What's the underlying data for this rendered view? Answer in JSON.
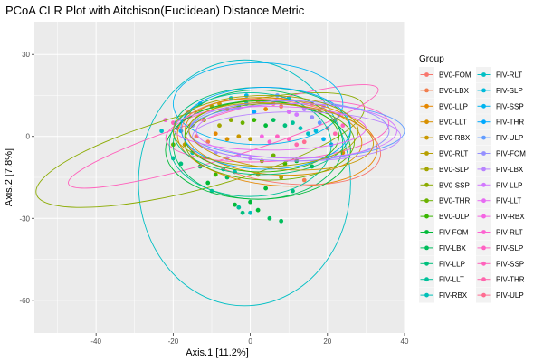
{
  "chart_data": {
    "type": "scatter",
    "title": "PCoA CLR Plot with Aitchison(Euclidean) Distance Metric",
    "xlabel": "Axis.1   [11.2%]",
    "ylabel": "Axis.2   [7.8%]",
    "xlim": [
      -56,
      40
    ],
    "ylim": [
      -72,
      42
    ],
    "x_ticks": [
      -40,
      -20,
      0,
      20,
      40
    ],
    "y_ticks": [
      -60,
      -30,
      0,
      30
    ],
    "x_tick_labels": [
      "-40",
      "-20",
      "0",
      "20",
      "40"
    ],
    "y_tick_labels": [
      "-60",
      "-30",
      "0",
      "30"
    ],
    "grid": true,
    "legend_position": "right",
    "legend_title": "Group",
    "groups": [
      {
        "name": "BV0-FOM",
        "color": "#F8766D"
      },
      {
        "name": "BV0-LBX",
        "color": "#F17E4F"
      },
      {
        "name": "BV0-LLP",
        "color": "#E58700"
      },
      {
        "name": "BV0-LLT",
        "color": "#D89000"
      },
      {
        "name": "BV0-RBX",
        "color": "#C99800"
      },
      {
        "name": "BV0-RLT",
        "color": "#B79F00"
      },
      {
        "name": "BV0-SLP",
        "color": "#A3A500"
      },
      {
        "name": "BV0-SSP",
        "color": "#8BAB00"
      },
      {
        "name": "BV0-THR",
        "color": "#6BB100"
      },
      {
        "name": "BV0-ULP",
        "color": "#39B600"
      },
      {
        "name": "FIV-FOM",
        "color": "#00BA38"
      },
      {
        "name": "FIV-LBX",
        "color": "#00BD5C"
      },
      {
        "name": "FIV-LLP",
        "color": "#00BF7D"
      },
      {
        "name": "FIV-LLT",
        "color": "#00C19A"
      },
      {
        "name": "FIV-RBX",
        "color": "#00C0B8"
      },
      {
        "name": "FIV-RLT",
        "color": "#00BFC4"
      },
      {
        "name": "FIV-SLP",
        "color": "#00BBDB"
      },
      {
        "name": "FIV-SSP",
        "color": "#00B4EF"
      },
      {
        "name": "FIV-THR",
        "color": "#00A9FF"
      },
      {
        "name": "FIV-ULP",
        "color": "#619CFF"
      },
      {
        "name": "PIV-FOM",
        "color": "#9590FF"
      },
      {
        "name": "PIV-LBX",
        "color": "#B983FF"
      },
      {
        "name": "PIV-LLP",
        "color": "#D277FF"
      },
      {
        "name": "PIV-LLT",
        "color": "#E76BF3"
      },
      {
        "name": "PIV-RBX",
        "color": "#F564E3"
      },
      {
        "name": "PIV-RLT",
        "color": "#FD61D1"
      },
      {
        "name": "PIV-SLP",
        "color": "#FF61C3"
      },
      {
        "name": "PIV-SSP",
        "color": "#FF62BC"
      },
      {
        "name": "PIV-THR",
        "color": "#FF65AC"
      },
      {
        "name": "PIV-ULP",
        "color": "#FF6C91"
      }
    ],
    "ellipses": [
      {
        "group": "FIV-RLT",
        "cx": -1.5,
        "cy": -17,
        "rx": 27.5,
        "ry": 45,
        "angle": 0
      },
      {
        "group": "BV0-SSP",
        "cx": -13,
        "cy": -5,
        "rx": 44,
        "ry": 14,
        "angle": 15
      },
      {
        "group": "PIV-SSP",
        "cx": -7,
        "cy": 0,
        "rx": 42,
        "ry": 8,
        "angle": 17
      },
      {
        "group": "PIV-SLP",
        "cx": 7,
        "cy": 2,
        "rx": 29,
        "ry": 11,
        "angle": 4
      },
      {
        "group": "FIV-LBX",
        "cx": 2,
        "cy": -3,
        "rx": 22,
        "ry": 20,
        "angle": 0
      },
      {
        "group": "FIV-SSP",
        "cx": 2,
        "cy": 12,
        "rx": 22,
        "ry": 15,
        "angle": 0
      },
      {
        "group": "BV0-LLP",
        "cx": 7,
        "cy": -2,
        "rx": 26,
        "ry": 16,
        "angle": -5
      },
      {
        "group": "BV0-FOM",
        "cx": 8,
        "cy": -2,
        "rx": 26,
        "ry": 15,
        "angle": -8
      },
      {
        "group": "BV0-LLT",
        "cx": 6,
        "cy": 0,
        "rx": 23,
        "ry": 14,
        "angle": -5
      },
      {
        "group": "FIV-FOM",
        "cx": 2,
        "cy": -5,
        "rx": 24,
        "ry": 18,
        "angle": 0
      },
      {
        "group": "FIV-LLP",
        "cx": 3,
        "cy": 2,
        "rx": 23,
        "ry": 16,
        "angle": 0
      },
      {
        "group": "FIV-LLT",
        "cx": 0,
        "cy": -3,
        "rx": 21,
        "ry": 19,
        "angle": 0
      },
      {
        "group": "BV0-THR",
        "cx": 5,
        "cy": -2,
        "rx": 22,
        "ry": 14,
        "angle": 0
      },
      {
        "group": "BV0-ULP",
        "cx": 3,
        "cy": 0,
        "rx": 20,
        "ry": 13,
        "angle": 0
      },
      {
        "group": "FIV-THR",
        "cx": 4,
        "cy": 3,
        "rx": 22,
        "ry": 15,
        "angle": 0
      },
      {
        "group": "FIV-ULP",
        "cx": 12,
        "cy": 2,
        "rx": 28,
        "ry": 10,
        "angle": 0
      },
      {
        "group": "PIV-FOM",
        "cx": 10,
        "cy": 2,
        "rx": 26,
        "ry": 11,
        "angle": 0
      },
      {
        "group": "PIV-LBX",
        "cx": 12,
        "cy": 0,
        "rx": 27,
        "ry": 9,
        "angle": 0
      },
      {
        "group": "PIV-LLP",
        "cx": 12,
        "cy": 2,
        "rx": 26,
        "ry": 10,
        "angle": 0
      },
      {
        "group": "PIV-LLT",
        "cx": 5,
        "cy": 3,
        "rx": 25,
        "ry": 8,
        "angle": 0
      },
      {
        "group": "BV0-SLP",
        "cx": 4,
        "cy": 2,
        "rx": 24,
        "ry": 13,
        "angle": 0
      },
      {
        "group": "BV0-RBX",
        "cx": 8,
        "cy": 0,
        "rx": 24,
        "ry": 12,
        "angle": -5
      }
    ],
    "points": [
      {
        "group": "FIV-LBX",
        "x": 5,
        "y": -30
      },
      {
        "group": "FIV-LBX",
        "x": 8,
        "y": -31
      },
      {
        "group": "FIV-FOM",
        "x": -4,
        "y": -25
      },
      {
        "group": "FIV-FOM",
        "x": 0,
        "y": -24
      },
      {
        "group": "FIV-FOM",
        "x": 2,
        "y": -27
      },
      {
        "group": "FIV-LLP",
        "x": -2,
        "y": -28
      },
      {
        "group": "FIV-LLT",
        "x": -3,
        "y": -26
      },
      {
        "group": "FIV-RBX",
        "x": 0,
        "y": -28
      },
      {
        "group": "FIV-LLT",
        "x": -10,
        "y": -20
      },
      {
        "group": "FIV-FOM",
        "x": -11,
        "y": -17
      },
      {
        "group": "BV0-ULP",
        "x": -9,
        "y": -14
      },
      {
        "group": "FIV-LBX",
        "x": -6,
        "y": -15
      },
      {
        "group": "FIV-LLP",
        "x": -18,
        "y": -10
      },
      {
        "group": "BV0-THR",
        "x": -20,
        "y": -3
      },
      {
        "group": "FIV-LLT",
        "x": -20,
        "y": -8
      },
      {
        "group": "PIV-SSP",
        "x": -20,
        "y": 5
      },
      {
        "group": "PIV-SLP",
        "x": -19,
        "y": 3
      },
      {
        "group": "PIV-RBX",
        "x": -22,
        "y": 6
      },
      {
        "group": "FIV-RLT",
        "x": -23,
        "y": 2
      },
      {
        "group": "FIV-SSP",
        "x": -18,
        "y": 2
      },
      {
        "group": "PIV-FOM",
        "x": -15,
        "y": 4
      },
      {
        "group": "BV0-SLP",
        "x": -10,
        "y": 11
      },
      {
        "group": "BV0-RBX",
        "x": -8,
        "y": 12
      },
      {
        "group": "BV0-SSP",
        "x": -6,
        "y": 10
      },
      {
        "group": "FIV-SLP",
        "x": -3,
        "y": 11
      },
      {
        "group": "FIV-THR",
        "x": -1,
        "y": 12
      },
      {
        "group": "BV0-LLT",
        "x": 2,
        "y": 13
      },
      {
        "group": "BV0-LLP",
        "x": 4,
        "y": 10
      },
      {
        "group": "BV0-FOM",
        "x": 6,
        "y": 12
      },
      {
        "group": "BV0-LBX",
        "x": 8,
        "y": 11
      },
      {
        "group": "PIV-LLT",
        "x": 10,
        "y": 9
      },
      {
        "group": "PIV-LLP",
        "x": 12,
        "y": 8
      },
      {
        "group": "PIV-LBX",
        "x": 14,
        "y": 10
      },
      {
        "group": "PIV-FOM",
        "x": 16,
        "y": 7
      },
      {
        "group": "FIV-ULP",
        "x": 18,
        "y": 5
      },
      {
        "group": "PIV-ULP",
        "x": 20,
        "y": 3
      },
      {
        "group": "PIV-THR",
        "x": 22,
        "y": 1
      },
      {
        "group": "PIV-SSP",
        "x": 24,
        "y": 4
      },
      {
        "group": "BV0-RLT",
        "x": -12,
        "y": 6
      },
      {
        "group": "BV0-SLP",
        "x": -8,
        "y": 4
      },
      {
        "group": "BV0-SSP",
        "x": -5,
        "y": 6
      },
      {
        "group": "BV0-THR",
        "x": -2,
        "y": 5
      },
      {
        "group": "BV0-ULP",
        "x": 1,
        "y": 6
      },
      {
        "group": "FIV-FOM",
        "x": 4,
        "y": 4
      },
      {
        "group": "FIV-LBX",
        "x": 6,
        "y": 6
      },
      {
        "group": "FIV-LLP",
        "x": 9,
        "y": 4
      },
      {
        "group": "FIV-LLT",
        "x": 11,
        "y": 5
      },
      {
        "group": "FIV-RBX",
        "x": 13,
        "y": 3
      },
      {
        "group": "FIV-RLT",
        "x": 15,
        "y": 1
      },
      {
        "group": "FIV-SLP",
        "x": 17,
        "y": 2
      },
      {
        "group": "FIV-SSP",
        "x": 19,
        "y": -1
      },
      {
        "group": "FIV-THR",
        "x": 21,
        "y": -3
      },
      {
        "group": "BV0-FOM",
        "x": -14,
        "y": 0
      },
      {
        "group": "BV0-LBX",
        "x": -11,
        "y": -2
      },
      {
        "group": "BV0-LLP",
        "x": -9,
        "y": 1
      },
      {
        "group": "BV0-LLT",
        "x": -6,
        "y": -1
      },
      {
        "group": "BV0-RBX",
        "x": -3,
        "y": 0
      },
      {
        "group": "BV0-RLT",
        "x": 0,
        "y": -1
      },
      {
        "group": "PIV-RBX",
        "x": 3,
        "y": 0
      },
      {
        "group": "PIV-RLT",
        "x": 5,
        "y": -2
      },
      {
        "group": "PIV-SLP",
        "x": 7,
        "y": 0
      },
      {
        "group": "PIV-SSP",
        "x": 10,
        "y": -1
      },
      {
        "group": "PIV-THR",
        "x": 12,
        "y": -3
      },
      {
        "group": "PIV-ULP",
        "x": 14,
        "y": -2
      },
      {
        "group": "FIV-RBX",
        "x": -15,
        "y": -6
      },
      {
        "group": "FIV-ULP",
        "x": -12,
        "y": -8
      },
      {
        "group": "PIV-FOM",
        "x": -9,
        "y": -6
      },
      {
        "group": "PIV-LBX",
        "x": -6,
        "y": -8
      },
      {
        "group": "PIV-LLP",
        "x": -3,
        "y": -7
      },
      {
        "group": "PIV-LLT",
        "x": 0,
        "y": -8
      },
      {
        "group": "BV0-SSP",
        "x": 3,
        "y": -9
      },
      {
        "group": "BV0-THR",
        "x": 6,
        "y": -7
      },
      {
        "group": "BV0-ULP",
        "x": 9,
        "y": -10
      },
      {
        "group": "FIV-FOM",
        "x": 12,
        "y": -9
      },
      {
        "group": "FIV-LBX",
        "x": 16,
        "y": -11
      },
      {
        "group": "FIV-LLP",
        "x": 20,
        "y": -8
      },
      {
        "group": "FIV-LLT",
        "x": -7,
        "y": -12
      },
      {
        "group": "FIV-RBX",
        "x": -4,
        "y": -13
      },
      {
        "group": "BV0-RLT",
        "x": 2,
        "y": -14
      },
      {
        "group": "BV0-SLP",
        "x": 8,
        "y": -15
      },
      {
        "group": "BV0-LBX",
        "x": 14,
        "y": -16
      },
      {
        "group": "BV0-FOM",
        "x": -16,
        "y": 9
      },
      {
        "group": "FIV-THR",
        "x": -13,
        "y": 12
      },
      {
        "group": "FIV-ULP",
        "x": 7,
        "y": 15
      },
      {
        "group": "FIV-SLP",
        "x": 10,
        "y": 14
      },
      {
        "group": "FIV-SSP",
        "x": -1,
        "y": 15
      },
      {
        "group": "PIV-RLT",
        "x": 16,
        "y": 12
      },
      {
        "group": "PIV-ULP",
        "x": 18,
        "y": 9
      },
      {
        "group": "BV0-LLP",
        "x": 22,
        "y": 6
      },
      {
        "group": "BV0-LLT",
        "x": 24,
        "y": -6
      },
      {
        "group": "BV0-RBX",
        "x": -17,
        "y": -3
      },
      {
        "group": "FIV-LBX",
        "x": -13,
        "y": -11
      },
      {
        "group": "FIV-FOM",
        "x": 4,
        "y": -19
      },
      {
        "group": "FIV-LLP",
        "x": 11,
        "y": -20
      },
      {
        "group": "PIV-LBX",
        "x": 19,
        "y": 11
      },
      {
        "group": "PIV-LLP",
        "x": 23,
        "y": 8
      },
      {
        "group": "FIV-RLT",
        "x": -5,
        "y": 14
      },
      {
        "group": "FIV-THR",
        "x": 1,
        "y": 9
      }
    ]
  }
}
